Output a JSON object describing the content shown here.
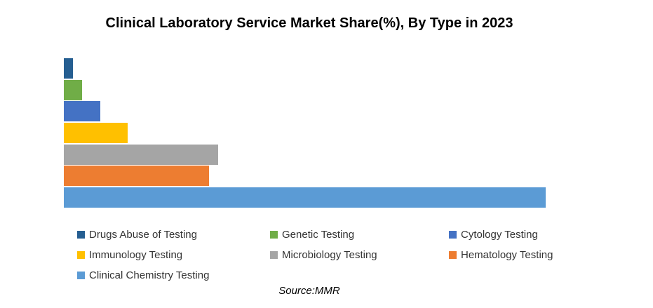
{
  "page": {
    "title": "Clinical Laboratory Service Market Share(%), By Type in 2023",
    "source_note": "Source:MMR"
  },
  "chart_data": {
    "type": "bar",
    "orientation": "horizontal",
    "title": "Clinical Laboratory Service Market Share(%), By Type in 2023",
    "categories": [
      "Drugs Abuse of Testing",
      "Genetic Testing",
      "Cytology Testing",
      "Immunology Testing",
      "Microbiology Testing",
      "Hematology Testing",
      "Clinical Chemistry Testing"
    ],
    "values": [
      1,
      2,
      4,
      7,
      17,
      16,
      53
    ],
    "unit": "% market share",
    "colors": [
      "#255E91",
      "#70AD47",
      "#4472C4",
      "#FFC000",
      "#A5A5A5",
      "#ED7D31",
      "#5B9BD5"
    ],
    "xlim": [
      0,
      55
    ],
    "xlabel": "",
    "ylabel": "",
    "axes_visible": false,
    "grid": false,
    "data_labels": false,
    "legend_position": "bottom",
    "source": "Source:MMR"
  }
}
